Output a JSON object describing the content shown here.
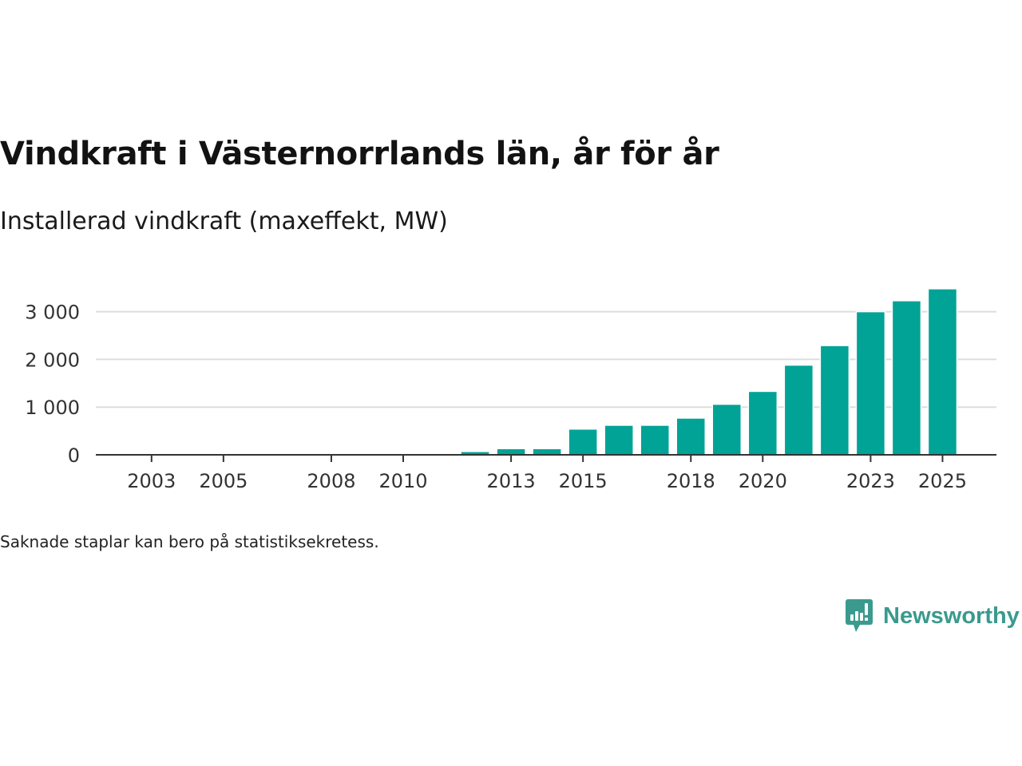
{
  "chart_data": {
    "type": "bar",
    "title": "Vindkraft i Västernorrlands län, år för år",
    "subtitle": "Installerad vindkraft (maxeffekt, MW)",
    "xlabel": "",
    "ylabel": "",
    "categories": [
      2012,
      2013,
      2014,
      2015,
      2016,
      2017,
      2018,
      2019,
      2020,
      2021,
      2022,
      2023,
      2024,
      2025
    ],
    "values": [
      70,
      130,
      130,
      540,
      620,
      620,
      770,
      1060,
      1330,
      1880,
      2290,
      3000,
      3230,
      3480
    ],
    "ylim": [
      0,
      3600
    ],
    "xlim": [
      2001.45,
      2026.5
    ],
    "yticks": [
      0,
      1000,
      2000,
      3000
    ],
    "ytick_labels": [
      "0",
      "1 000",
      "2 000",
      "3 000"
    ],
    "xticks": [
      2003,
      2005,
      2008,
      2010,
      2013,
      2015,
      2018,
      2020,
      2023,
      2025
    ],
    "xtick_labels": [
      "2003",
      "2005",
      "2008",
      "2010",
      "2013",
      "2015",
      "2018",
      "2020",
      "2023",
      "2025"
    ],
    "grid": true,
    "bar_color": "#00a396"
  },
  "footnote": "Saknade staplar kan bero på statistiksekretess.",
  "logo": {
    "text": "Newsworthy",
    "color": "#3a9a8d"
  }
}
